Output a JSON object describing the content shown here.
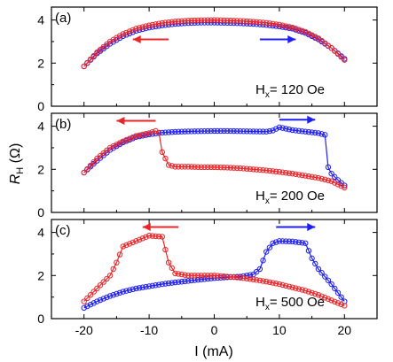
{
  "figure": {
    "shared_ylabel_main": "R",
    "shared_ylabel_sub": "H",
    "shared_ylabel_unit": " (Ω)",
    "shared_xlabel": "I (mA)",
    "arrow_colors": {
      "sweep_down": "#e8262a",
      "sweep_up": "#1f1ff0"
    }
  },
  "chart_data": [
    {
      "type": "scatter",
      "panel": "(a)",
      "annotation": {
        "main": "H",
        "sub": "x",
        "rest": "= 120 Oe"
      },
      "xlim": [
        -25,
        25
      ],
      "ylim": [
        0,
        4.6
      ],
      "xticks": [
        -20,
        -10,
        0,
        10,
        20
      ],
      "yticks": [
        0,
        2,
        4
      ],
      "show_xticklabels": false,
      "arrows": [
        "left-red",
        "right-blue"
      ],
      "series": [
        {
          "color": "#1f1ff0",
          "points": [
            [
              -20,
              1.85
            ],
            [
              -18,
              2.45
            ],
            [
              -16,
              2.9
            ],
            [
              -14,
              3.25
            ],
            [
              -12,
              3.5
            ],
            [
              -10,
              3.65
            ],
            [
              -8,
              3.75
            ],
            [
              -6,
              3.82
            ],
            [
              -4,
              3.86
            ],
            [
              -2,
              3.88
            ],
            [
              0,
              3.88
            ],
            [
              2,
              3.87
            ],
            [
              4,
              3.85
            ],
            [
              6,
              3.82
            ],
            [
              8,
              3.77
            ],
            [
              10,
              3.7
            ],
            [
              12,
              3.6
            ],
            [
              14,
              3.4
            ],
            [
              16,
              3.1
            ],
            [
              18,
              2.7
            ],
            [
              20,
              2.2
            ]
          ]
        },
        {
          "color": "#e8262a",
          "points": [
            [
              20,
              2.15
            ],
            [
              18,
              2.7
            ],
            [
              16,
              3.15
            ],
            [
              14,
              3.45
            ],
            [
              12,
              3.65
            ],
            [
              10,
              3.78
            ],
            [
              8,
              3.87
            ],
            [
              6,
              3.92
            ],
            [
              4,
              3.96
            ],
            [
              2,
              3.98
            ],
            [
              0,
              4.0
            ],
            [
              -2,
              3.99
            ],
            [
              -4,
              3.97
            ],
            [
              -6,
              3.93
            ],
            [
              -8,
              3.86
            ],
            [
              -10,
              3.75
            ],
            [
              -12,
              3.6
            ],
            [
              -14,
              3.35
            ],
            [
              -16,
              3.0
            ],
            [
              -18,
              2.5
            ],
            [
              -20,
              1.85
            ]
          ]
        }
      ]
    },
    {
      "type": "scatter",
      "panel": "(b)",
      "annotation": {
        "main": "H",
        "sub": "x",
        "rest": "= 200 Oe"
      },
      "xlim": [
        -25,
        25
      ],
      "ylim": [
        0,
        4.6
      ],
      "xticks": [
        -20,
        -10,
        0,
        10,
        20
      ],
      "yticks": [
        0,
        2,
        4
      ],
      "show_xticklabels": false,
      "arrows": [
        "left-red",
        "right-blue"
      ],
      "series": [
        {
          "color": "#1f1ff0",
          "points": [
            [
              -20,
              1.85
            ],
            [
              -18,
              2.4
            ],
            [
              -16,
              2.9
            ],
            [
              -14,
              3.25
            ],
            [
              -12,
              3.5
            ],
            [
              -10,
              3.62
            ],
            [
              -8,
              3.7
            ],
            [
              -6,
              3.74
            ],
            [
              -4,
              3.76
            ],
            [
              -2,
              3.77
            ],
            [
              0,
              3.78
            ],
            [
              2,
              3.78
            ],
            [
              4,
              3.77
            ],
            [
              6,
              3.76
            ],
            [
              8,
              3.75
            ],
            [
              9,
              3.8
            ],
            [
              10,
              3.95
            ],
            [
              12,
              3.82
            ],
            [
              14,
              3.75
            ],
            [
              16,
              3.68
            ],
            [
              17,
              3.6
            ],
            [
              17.5,
              2.1
            ],
            [
              18,
              1.8
            ],
            [
              19,
              1.5
            ],
            [
              20,
              1.25
            ]
          ]
        },
        {
          "color": "#e8262a",
          "points": [
            [
              20,
              1.15
            ],
            [
              19,
              1.3
            ],
            [
              18,
              1.45
            ],
            [
              16,
              1.6
            ],
            [
              14,
              1.7
            ],
            [
              12,
              1.8
            ],
            [
              10,
              1.88
            ],
            [
              8,
              1.95
            ],
            [
              6,
              2.0
            ],
            [
              4,
              2.05
            ],
            [
              2,
              2.08
            ],
            [
              0,
              2.1
            ],
            [
              -2,
              2.1
            ],
            [
              -4,
              2.12
            ],
            [
              -6,
              2.12
            ],
            [
              -7,
              2.2
            ],
            [
              -8,
              2.8
            ],
            [
              -8.5,
              3.7
            ],
            [
              -9,
              3.78
            ],
            [
              -10,
              3.68
            ],
            [
              -12,
              3.55
            ],
            [
              -14,
              3.3
            ],
            [
              -16,
              3.0
            ],
            [
              -18,
              2.5
            ],
            [
              -20,
              1.85
            ]
          ]
        }
      ]
    },
    {
      "type": "scatter",
      "panel": "(c)",
      "annotation": {
        "main": "H",
        "sub": "x",
        "rest": "= 500 Oe"
      },
      "xlim": [
        -25,
        25
      ],
      "ylim": [
        0,
        4.6
      ],
      "xticks": [
        -20,
        -10,
        0,
        10,
        20
      ],
      "yticks": [
        0,
        2,
        4
      ],
      "show_xticklabels": true,
      "xlabel": "I (mA)",
      "arrows": [
        "left-red",
        "right-blue"
      ],
      "series": [
        {
          "color": "#1f1ff0",
          "points": [
            [
              -20,
              0.5
            ],
            [
              -18,
              0.8
            ],
            [
              -16,
              1.05
            ],
            [
              -14,
              1.25
            ],
            [
              -12,
              1.4
            ],
            [
              -10,
              1.5
            ],
            [
              -8,
              1.6
            ],
            [
              -6,
              1.68
            ],
            [
              -4,
              1.75
            ],
            [
              -2,
              1.82
            ],
            [
              0,
              1.88
            ],
            [
              2,
              1.92
            ],
            [
              4,
              1.95
            ],
            [
              6,
              2.05
            ],
            [
              7,
              2.3
            ],
            [
              8,
              3.1
            ],
            [
              9,
              3.5
            ],
            [
              10,
              3.6
            ],
            [
              12,
              3.58
            ],
            [
              14,
              3.5
            ],
            [
              15,
              2.8
            ],
            [
              16,
              2.3
            ],
            [
              18,
              1.6
            ],
            [
              20,
              0.8
            ]
          ]
        },
        {
          "color": "#e8262a",
          "points": [
            [
              20,
              0.6
            ],
            [
              18,
              0.85
            ],
            [
              16,
              1.1
            ],
            [
              14,
              1.3
            ],
            [
              12,
              1.45
            ],
            [
              10,
              1.6
            ],
            [
              8,
              1.72
            ],
            [
              6,
              1.82
            ],
            [
              4,
              1.9
            ],
            [
              2,
              1.95
            ],
            [
              0,
              2.0
            ],
            [
              -2,
              2.0
            ],
            [
              -4,
              2.0
            ],
            [
              -6,
              2.1
            ],
            [
              -7,
              2.6
            ],
            [
              -8,
              3.8
            ],
            [
              -10,
              3.85
            ],
            [
              -12,
              3.6
            ],
            [
              -14,
              3.35
            ],
            [
              -15,
              2.6
            ],
            [
              -16,
              2.0
            ],
            [
              -18,
              1.4
            ],
            [
              -20,
              0.8
            ]
          ]
        }
      ]
    }
  ]
}
